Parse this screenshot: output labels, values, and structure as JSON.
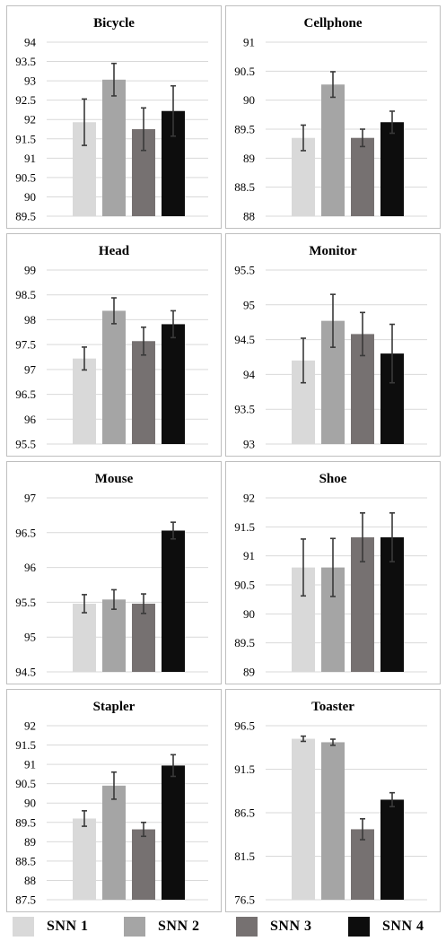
{
  "colors": [
    "#d9d9d9",
    "#a5a5a5",
    "#767171",
    "#0d0d0d"
  ],
  "legend": [
    {
      "label": "SNN 1",
      "color": "#d9d9d9"
    },
    {
      "label": "SNN 2",
      "color": "#a5a5a5"
    },
    {
      "label": "SNN 3",
      "color": "#767171"
    },
    {
      "label": "SNN 4",
      "color": "#0d0d0d"
    }
  ],
  "chart_data": [
    {
      "type": "bar",
      "title": "Bicycle",
      "categories": [
        "SNN 1",
        "SNN 2",
        "SNN 3",
        "SNN 4"
      ],
      "values": [
        91.93,
        93.03,
        91.75,
        92.22
      ],
      "errors": [
        0.6,
        0.42,
        0.55,
        0.65
      ],
      "ylim": [
        89.5,
        94
      ],
      "yticks": [
        "89.5",
        "90",
        "90.5",
        "91",
        "91.5",
        "92",
        "92.5",
        "93",
        "93.5",
        "94"
      ]
    },
    {
      "type": "bar",
      "title": "Cellphone",
      "categories": [
        "SNN 1",
        "SNN 2",
        "SNN 3",
        "SNN 4"
      ],
      "values": [
        89.35,
        90.27,
        89.35,
        89.62
      ],
      "errors": [
        0.22,
        0.22,
        0.15,
        0.19
      ],
      "ylim": [
        88,
        91
      ],
      "yticks": [
        "88",
        "88.5",
        "89",
        "89.5",
        "90",
        "90.5",
        "91"
      ]
    },
    {
      "type": "bar",
      "title": "Head",
      "categories": [
        "SNN 1",
        "SNN 2",
        "SNN 3",
        "SNN 4"
      ],
      "values": [
        97.22,
        98.18,
        97.57,
        97.91
      ],
      "errors": [
        0.23,
        0.26,
        0.28,
        0.27
      ],
      "ylim": [
        95.5,
        99
      ],
      "yticks": [
        "95.5",
        "96",
        "96.5",
        "97",
        "97.5",
        "98",
        "98.5",
        "99"
      ]
    },
    {
      "type": "bar",
      "title": "Monitor",
      "categories": [
        "SNN 1",
        "SNN 2",
        "SNN 3",
        "SNN 4"
      ],
      "values": [
        94.2,
        94.77,
        94.58,
        94.3
      ],
      "errors": [
        0.32,
        0.38,
        0.31,
        0.42
      ],
      "ylim": [
        93,
        95.5
      ],
      "yticks": [
        "93",
        "93.5",
        "94",
        "94.5",
        "95",
        "95.5"
      ]
    },
    {
      "type": "bar",
      "title": "Mouse",
      "categories": [
        "SNN 1",
        "SNN 2",
        "SNN 3",
        "SNN 4"
      ],
      "values": [
        95.48,
        95.54,
        95.48,
        96.53
      ],
      "errors": [
        0.13,
        0.14,
        0.14,
        0.12
      ],
      "ylim": [
        94.5,
        97
      ],
      "yticks": [
        "94.5",
        "95",
        "95.5",
        "96",
        "96.5",
        "97"
      ]
    },
    {
      "type": "bar",
      "title": "Shoe",
      "categories": [
        "SNN 1",
        "SNN 2",
        "SNN 3",
        "SNN 4"
      ],
      "values": [
        90.8,
        90.8,
        91.32,
        91.32
      ],
      "errors": [
        0.49,
        0.5,
        0.42,
        0.42
      ],
      "ylim": [
        89,
        92
      ],
      "yticks": [
        "89",
        "89.5",
        "90",
        "90.5",
        "91",
        "91.5",
        "92"
      ]
    },
    {
      "type": "bar",
      "title": "Stapler",
      "categories": [
        "SNN 1",
        "SNN 2",
        "SNN 3",
        "SNN 4"
      ],
      "values": [
        89.6,
        90.45,
        89.32,
        90.97
      ],
      "errors": [
        0.2,
        0.35,
        0.18,
        0.28
      ],
      "ylim": [
        87.5,
        92
      ],
      "yticks": [
        "87.5",
        "88",
        "88.5",
        "89",
        "89.5",
        "90",
        "90.5",
        "91",
        "91.5",
        "92"
      ]
    },
    {
      "type": "bar",
      "title": "Toaster",
      "categories": [
        "SNN 1",
        "SNN 2",
        "SNN 3",
        "SNN 4"
      ],
      "values": [
        95.0,
        94.6,
        84.6,
        88.0
      ],
      "errors": [
        0.3,
        0.35,
        1.2,
        0.8
      ],
      "ylim": [
        76.5,
        96.5
      ],
      "yticks": [
        "76.5",
        "81.5",
        "86.5",
        "91.5",
        "96.5"
      ]
    }
  ]
}
